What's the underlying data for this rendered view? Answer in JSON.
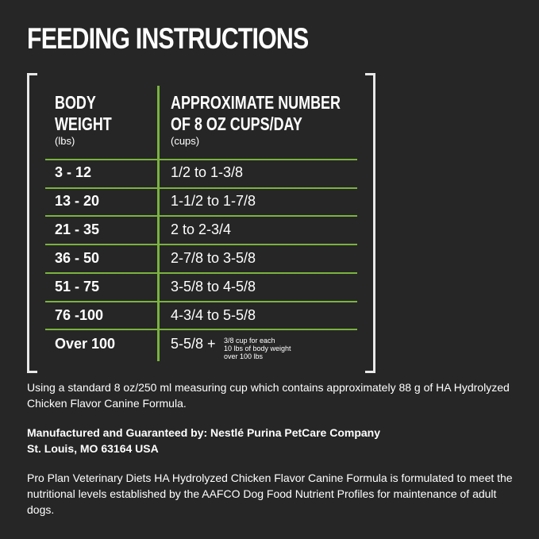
{
  "title": "FEEDING INSTRUCTIONS",
  "table": {
    "col1_header": [
      "BODY",
      "WEIGHT"
    ],
    "col1_unit": "(lbs)",
    "col2_header": [
      "APPROXIMATE NUMBER",
      "OF 8 OZ CUPS/DAY"
    ],
    "col2_unit": "(cups)",
    "rows": [
      {
        "weight": "3 - 12",
        "cups": "1/2 to 1-3/8"
      },
      {
        "weight": "13 - 20",
        "cups": "1-1/2 to 1-7/8"
      },
      {
        "weight": "21 - 35",
        "cups": "2 to 2-3/4"
      },
      {
        "weight": "36 - 50",
        "cups": "2-7/8 to 3-5/8"
      },
      {
        "weight": "51 - 75",
        "cups": "3-5/8 to 4-5/8"
      },
      {
        "weight": "76 -100",
        "cups": "4-3/4 to 5-5/8"
      },
      {
        "weight": "Over 100",
        "cups": "5-5/8 +",
        "note": [
          "3/8 cup for each",
          "10 lbs of body weight",
          "over 100 lbs"
        ]
      }
    ]
  },
  "measuring_note": "Using a standard 8 oz/250 ml measuring cup which contains approximately 88 g of HA Hydrolyzed Chicken Flavor Canine Formula.",
  "manufacturer": [
    "Manufactured and Guaranteed by: Nestlé Purina PetCare Company",
    "St. Louis, MO 63164 USA"
  ],
  "aafco_statement": "Pro Plan Veterinary Diets HA Hydrolyzed Chicken Flavor Canine Formula is formulated to meet the nutritional levels established by the AAFCO Dog Food Nutrient Profiles for maintenance of adult dogs.",
  "colors": {
    "background": "#262626",
    "accent": "#7ab33e",
    "text": "#ffffff"
  }
}
